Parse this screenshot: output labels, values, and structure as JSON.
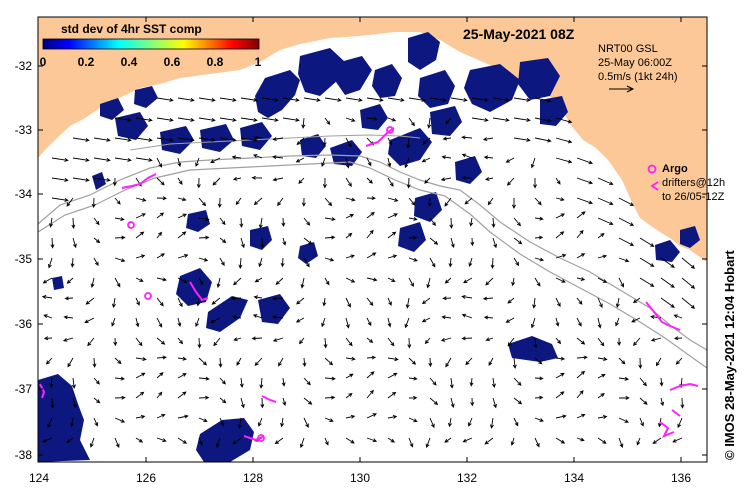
{
  "title": "25-May-2021 08Z",
  "colorbar": {
    "title": "std dev of 4hr SST comp",
    "ticks": [
      "0",
      "0.2",
      "0.4",
      "0.6",
      "0.8",
      "1"
    ],
    "range": [
      0,
      1
    ]
  },
  "model": {
    "name": "NRT00 GSL",
    "time": "25-May 06:00Z",
    "scale_label": "0.5m/s (1kt 24h)"
  },
  "argo": {
    "label": "Argo",
    "drifters_line1": "drifters@12h",
    "drifters_line2": "to 26/05-12Z"
  },
  "credit": "© IMOS 28-May-2021 12:04 Hobart",
  "axes": {
    "x_ticks": [
      "124",
      "126",
      "128",
      "130",
      "132",
      "134",
      "136"
    ],
    "y_ticks": [
      "-32",
      "-33",
      "-34",
      "-35",
      "-36",
      "-37",
      "-38"
    ],
    "lon_range": [
      124,
      136.5
    ],
    "lat_range": [
      -38.05,
      -31.3
    ]
  },
  "colors": {
    "land": "#fcc898",
    "cloud": "#0c1780",
    "argo": "#ff20ff",
    "isobath": "#a0a0a0",
    "arrow": "#000000"
  }
}
